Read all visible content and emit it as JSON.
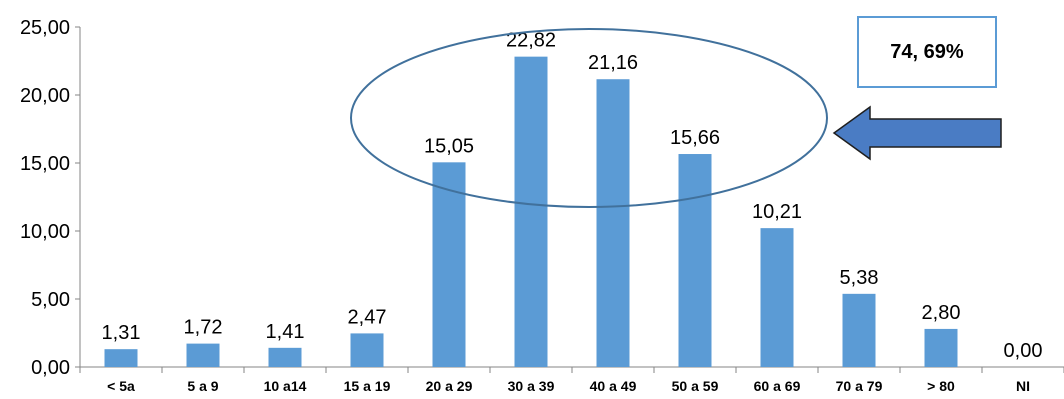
{
  "chart_data": {
    "type": "bar",
    "categories": [
      "< 5a",
      "5 a 9",
      "10 a14",
      "15 a 19",
      "20 a 29",
      "30 a 39",
      "40 a 49",
      "50 a 59",
      "60 a 69",
      "70 a 79",
      "> 80",
      "NI"
    ],
    "values": [
      1.31,
      1.72,
      1.41,
      2.47,
      15.05,
      22.82,
      21.16,
      15.66,
      10.21,
      5.38,
      2.8,
      0.0
    ],
    "value_labels": [
      "1,31",
      "1,72",
      "1,41",
      "2,47",
      "15,05",
      "22,82",
      "21,16",
      "15,66",
      "10,21",
      "5,38",
      "2,80",
      "0,00"
    ],
    "ylim": [
      0,
      25
    ],
    "yticks": [
      0,
      5,
      10,
      15,
      20,
      25
    ],
    "ytick_labels": [
      "0,00",
      "5,00",
      "10,00",
      "15,00",
      "20,00",
      "25,00"
    ],
    "grid": false,
    "legend": "none",
    "bar_color": "#5b9bd5",
    "annotations": {
      "callout_text": "74, 69%",
      "callout_border_color": "#5b9bd5",
      "ellipse_stroke_color": "#41719c",
      "highlighted_categories": [
        "20 a 29",
        "30 a 39",
        "40 a 49",
        "50 a 59"
      ],
      "arrow_fill_color": "#4a7cc4",
      "arrow_direction": "left"
    }
  }
}
